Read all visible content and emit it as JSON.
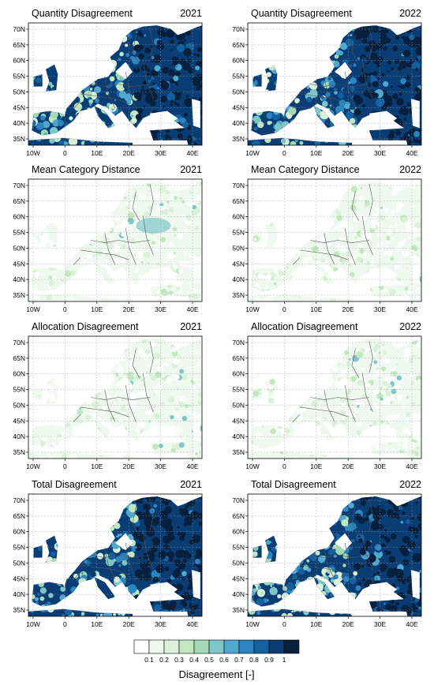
{
  "panels": [
    {
      "title": "Quantity Disagreement",
      "year": "2021",
      "variant": "quantity"
    },
    {
      "title": "Quantity Disagreement",
      "year": "2022",
      "variant": "quantity"
    },
    {
      "title": "Mean Category Distance",
      "year": "2021",
      "variant": "mean"
    },
    {
      "title": "Mean Category Distance",
      "year": "2022",
      "variant": "mean"
    },
    {
      "title": "Allocation Disagreement",
      "year": "2021",
      "variant": "allocation"
    },
    {
      "title": "Allocation Disagreement",
      "year": "2022",
      "variant": "allocation"
    },
    {
      "title": "Total Disagreement",
      "year": "2021",
      "variant": "total"
    },
    {
      "title": "Total Disagreement",
      "year": "2022",
      "variant": "total"
    }
  ],
  "axes": {
    "lat_labels": [
      "70N",
      "65N",
      "60N",
      "55N",
      "50N",
      "45N",
      "40N",
      "35N"
    ],
    "lon_labels": [
      "10W",
      "0",
      "10E",
      "20E",
      "30E",
      "40E"
    ]
  },
  "colorbar": {
    "label": "Disagreement [-]",
    "tick_labels": [
      "0.1",
      "0.2",
      "0.3",
      "0.4",
      "0.5",
      "0.6",
      "0.7",
      "0.8",
      "0.9",
      "1"
    ],
    "colors": [
      "#ffffff",
      "#f0f9ef",
      "#dcf1da",
      "#c3e7c1",
      "#a3d9b4",
      "#7ec6c8",
      "#4fa9cf",
      "#2b86c0",
      "#15609f",
      "#093d74",
      "#06203d"
    ]
  }
}
